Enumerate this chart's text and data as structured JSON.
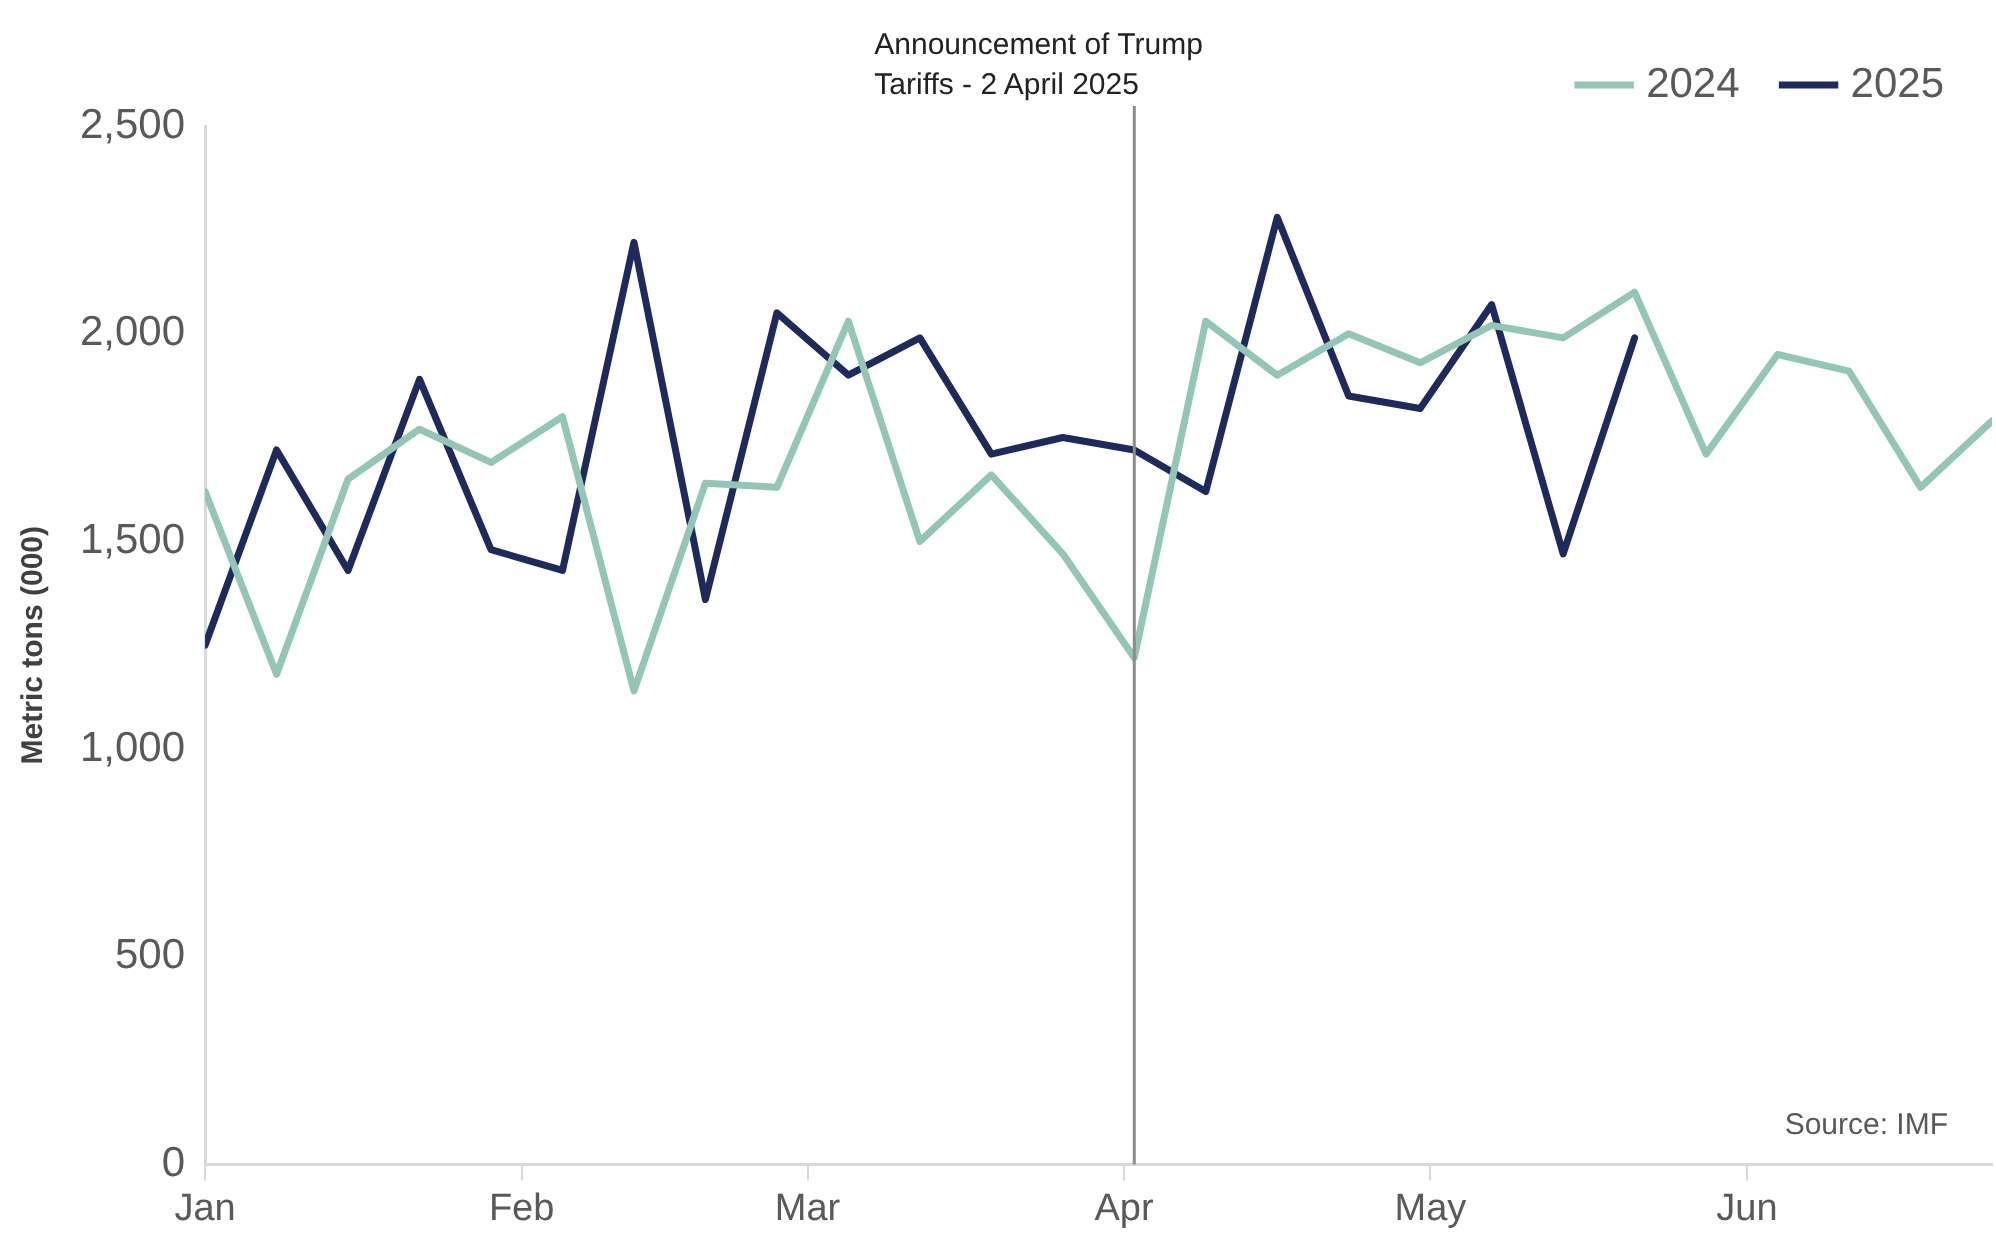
{
  "chart_data": {
    "type": "line",
    "ylabel": "Metric tons (000)",
    "x": [
      "--01-01",
      "--01-08",
      "--01-15",
      "--01-22",
      "--01-29",
      "--02-05",
      "--02-12",
      "--02-19",
      "--02-26",
      "--03-05",
      "--03-12",
      "--03-19",
      "--03-26",
      "--04-02",
      "--04-09",
      "--04-16",
      "--04-23",
      "--04-30",
      "--05-07",
      "--05-14",
      "--05-21",
      "--05-28",
      "--06-04",
      "--06-11",
      "--06-18",
      "--06-25"
    ],
    "series": [
      {
        "name": "2024",
        "color": "#93c6b6",
        "values": [
          1620,
          1180,
          1650,
          1770,
          1690,
          1800,
          1140,
          1640,
          1630,
          2030,
          1500,
          1660,
          1470,
          1220,
          2030,
          1900,
          2000,
          1930,
          2020,
          1990,
          2100,
          1710,
          1950,
          1910,
          1630,
          1790
        ]
      },
      {
        "name": "2025",
        "color": "#1f2a5c",
        "x": [
          "--01-01",
          "--01-08",
          "--01-15",
          "--01-22",
          "--01-29",
          "--02-05",
          "--02-12",
          "--02-19",
          "--02-26",
          "--03-05",
          "--03-12",
          "--03-19",
          "--03-26",
          "--04-02",
          "--04-09",
          "--04-16",
          "--04-23",
          "--04-30",
          "--05-07",
          "--05-14",
          "--05-21"
        ],
        "values": [
          1250,
          1720,
          1430,
          1890,
          1480,
          1430,
          2220,
          1360,
          2050,
          1900,
          1990,
          1710,
          1750,
          1720,
          1620,
          2280,
          1850,
          1820,
          2070,
          1470,
          1990
        ]
      }
    ],
    "xlim": [
      "--01-01",
      "--06-25"
    ],
    "xticks": [
      {
        "value": "--01-01",
        "label": "Jan"
      },
      {
        "value": "--02-01",
        "label": "Feb"
      },
      {
        "value": "--03-01",
        "label": "Mar"
      },
      {
        "value": "--04-01",
        "label": "Apr"
      },
      {
        "value": "--05-01",
        "label": "May"
      },
      {
        "value": "--06-01",
        "label": "Jun"
      }
    ],
    "ylim": [
      0,
      2500
    ],
    "yticks": [
      {
        "value": 0,
        "label": "0"
      },
      {
        "value": 500,
        "label": "500"
      },
      {
        "value": 1000,
        "label": "1,000"
      },
      {
        "value": 1500,
        "label": "1,500"
      },
      {
        "value": 2000,
        "label": "2,000"
      },
      {
        "value": 2500,
        "label": "2,500"
      }
    ],
    "ref_lines": [
      {
        "axis": "x",
        "value": "--04-02",
        "label": "Announcement of Trump Tariffs - 2 April 2025",
        "color": "#8c8c8c"
      }
    ],
    "annotations": [
      "Source: IMF"
    ],
    "grid": false,
    "legend": "top right",
    "marker": "none",
    "line_style": "solid"
  }
}
